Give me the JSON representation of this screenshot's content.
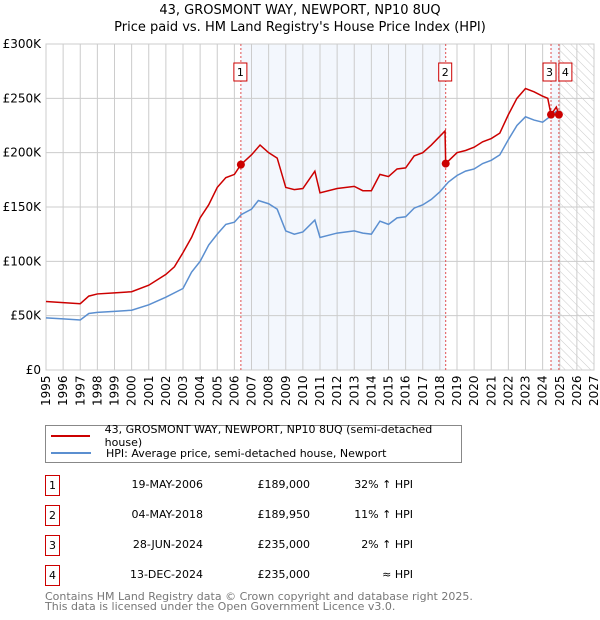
{
  "chart_data": {
    "type": "line",
    "title": "43, GROSMONT WAY, NEWPORT, NP10 8UQ",
    "subtitle": "Price paid vs. HM Land Registry's House Price Index (HPI)",
    "xlim": [
      1995,
      2027
    ],
    "ylim": [
      0,
      300000
    ],
    "x_ticks": [
      "1995",
      "1996",
      "1997",
      "1998",
      "1999",
      "2000",
      "2001",
      "2002",
      "2003",
      "2004",
      "2005",
      "2006",
      "2007",
      "2008",
      "2009",
      "2010",
      "2011",
      "2012",
      "2013",
      "2014",
      "2015",
      "2016",
      "2017",
      "2018",
      "2019",
      "2020",
      "2021",
      "2022",
      "2023",
      "2024",
      "2025",
      "2026",
      "2027"
    ],
    "y_ticks": [
      {
        "v": 0,
        "label": "£0"
      },
      {
        "v": 50000,
        "label": "£50K"
      },
      {
        "v": 100000,
        "label": "£100K"
      },
      {
        "v": 150000,
        "label": "£150K"
      },
      {
        "v": 200000,
        "label": "£200K"
      },
      {
        "v": 250000,
        "label": "£250K"
      },
      {
        "v": 300000,
        "label": "£300K"
      }
    ],
    "grid": true,
    "series": [
      {
        "name": "43, GROSMONT WAY, NEWPORT, NP10 8UQ (semi-detached house)",
        "color": "#cc0000",
        "x": [
          1995,
          1996,
          1997,
          1997.5,
          1998,
          1999,
          2000,
          2001,
          2002,
          2002.5,
          2003,
          2003.5,
          2004,
          2004.5,
          2005,
          2005.5,
          2006,
          2006.38,
          2007,
          2007.5,
          2008,
          2008.5,
          2009,
          2009.5,
          2010,
          2010.7,
          2011,
          2012,
          2013,
          2013.5,
          2014,
          2014.5,
          2015,
          2015.5,
          2016,
          2016.5,
          2017,
          2017.5,
          2018.3,
          2018.34,
          2019,
          2019.5,
          2020,
          2020.5,
          2021,
          2021.5,
          2022,
          2022.5,
          2023,
          2023.5,
          2024,
          2024.3,
          2024.49,
          2024.8,
          2024.95
        ],
        "y": [
          63000,
          62000,
          61000,
          68000,
          70000,
          71000,
          72000,
          78000,
          88000,
          95000,
          108000,
          122000,
          140000,
          152000,
          168000,
          177000,
          180000,
          189000,
          198000,
          207000,
          200000,
          195000,
          168000,
          166000,
          167000,
          183000,
          163000,
          167000,
          169000,
          165000,
          165000,
          180000,
          178000,
          185000,
          186000,
          197000,
          200000,
          207000,
          220000,
          189950,
          200000,
          202000,
          205000,
          210000,
          213000,
          218000,
          235000,
          250000,
          259000,
          256000,
          252000,
          250000,
          235000,
          242000,
          235000
        ]
      },
      {
        "name": "HPI: Average price, semi-detached house, Newport",
        "color": "#5b8fd0",
        "x": [
          1995,
          1996,
          1997,
          1997.5,
          1998,
          1999,
          2000,
          2001,
          2002,
          2003,
          2003.5,
          2004,
          2004.5,
          2005,
          2005.5,
          2006,
          2006.4,
          2007,
          2007.4,
          2008,
          2008.5,
          2009,
          2009.5,
          2010,
          2010.7,
          2011,
          2012,
          2013,
          2013.5,
          2014,
          2014.5,
          2015,
          2015.5,
          2016,
          2016.5,
          2017,
          2017.5,
          2018,
          2018.5,
          2019,
          2019.5,
          2020,
          2020.5,
          2021,
          2021.5,
          2022,
          2022.5,
          2023,
          2023.5,
          2024,
          2024.5,
          2024.8,
          2025
        ],
        "y": [
          48000,
          47000,
          46000,
          52000,
          53000,
          54000,
          55000,
          60000,
          67000,
          75000,
          90000,
          100000,
          115000,
          125000,
          134000,
          136000,
          143000,
          148000,
          156000,
          153000,
          148000,
          128000,
          125000,
          127000,
          138000,
          122000,
          126000,
          128000,
          126000,
          125000,
          137000,
          134000,
          140000,
          141000,
          149000,
          152000,
          157000,
          164000,
          173000,
          179000,
          183000,
          185000,
          190000,
          193000,
          198000,
          212000,
          225000,
          233000,
          230000,
          228000,
          234000,
          238000,
          236000
        ]
      }
    ],
    "sales": [
      {
        "id": "1",
        "x": 2006.38,
        "y": 189000,
        "date": "19-MAY-2006",
        "price": "£189,000",
        "hpi": "32% ↑ HPI"
      },
      {
        "id": "2",
        "x": 2018.34,
        "y": 189950,
        "date": "04-MAY-2018",
        "price": "£189,950",
        "hpi": "11% ↑ HPI"
      },
      {
        "id": "3",
        "x": 2024.49,
        "y": 235000,
        "date": "28-JUN-2024",
        "price": "£235,000",
        "hpi": "2% ↑ HPI"
      },
      {
        "id": "4",
        "x": 2024.95,
        "y": 235000,
        "date": "13-DEC-2024",
        "price": "£235,000",
        "hpi": "≈ HPI"
      }
    ],
    "forecast_from": 2025
  },
  "footer": [
    "Contains HM Land Registry data © Crown copyright and database right 2025.",
    "This data is licensed under the Open Government Licence v3.0."
  ]
}
